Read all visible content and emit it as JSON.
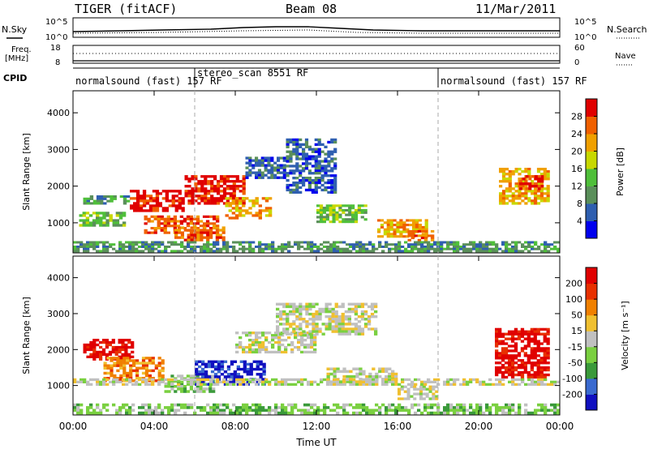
{
  "header": {
    "radar": "TIGER (fitACF)",
    "beam": "Beam 08",
    "date": "11/Mar/2011"
  },
  "nsky_panel": {
    "left_label": "N.Sky",
    "right_label": "N.Search",
    "left_ticks": [
      "10^5",
      "10^0"
    ],
    "right_ticks": [
      "10^5",
      "10^0"
    ]
  },
  "freq_panel": {
    "left_label_1": "Freq.",
    "left_label_2": "[MHz]",
    "right_label": "Nave",
    "left_ticks": [
      "18",
      "8"
    ],
    "right_ticks": [
      "60",
      "0"
    ]
  },
  "cpid": {
    "label": "CPID",
    "segments": [
      {
        "start_hour": 0,
        "end_hour": 6,
        "text": "normalsound (fast) 157 RF"
      },
      {
        "start_hour": 6,
        "end_hour": 18,
        "text": "stereo_scan 8551 RF"
      },
      {
        "start_hour": 18,
        "end_hour": 24,
        "text": "normalsound (fast) 157 RF"
      }
    ]
  },
  "power_panel": {
    "ylabel": "Slant Range [km]",
    "yticks": [
      "1000",
      "2000",
      "3000",
      "4000"
    ],
    "colorbar_label": "Power [dB]",
    "colorbar_ticks": [
      "4",
      "8",
      "12",
      "16",
      "20",
      "24",
      "28"
    ],
    "colorbar_colors": [
      "#0000ee",
      "#2f5fb0",
      "#5a8f5a",
      "#4fbf3a",
      "#c8d800",
      "#f0a000",
      "#f06000",
      "#e00000"
    ]
  },
  "velocity_panel": {
    "ylabel": "Slant Range [km]",
    "yticks": [
      "1000",
      "2000",
      "3000",
      "4000"
    ],
    "colorbar_label": "Velocity [m s⁻¹]",
    "colorbar_ticks": [
      "200",
      "100",
      "50",
      "15",
      "-15",
      "-50",
      "-100",
      "-200"
    ],
    "colorbar_colors": [
      "#1010c0",
      "#3a6ad0",
      "#3a9a3a",
      "#7ad040",
      "#c0c0c0",
      "#f0c030",
      "#f08000",
      "#e83000",
      "#e00000"
    ]
  },
  "xaxis": {
    "label": "Time UT",
    "ticks": [
      "00:00",
      "04:00",
      "08:00",
      "12:00",
      "16:00",
      "20:00",
      "00:00"
    ]
  },
  "chart_data": {
    "type": "heatmap",
    "title": "TIGER (fitACF)",
    "xlabel": "Time UT",
    "ylabel": "Slant Range [km]",
    "xlim": [
      0,
      24
    ],
    "ylim": [
      180,
      4600
    ],
    "power_blobs": [
      {
        "t0": 0.3,
        "t1": 2.6,
        "r0": 900,
        "r1": 1300,
        "level": 3
      },
      {
        "t0": 0.5,
        "t1": 2.8,
        "r0": 1500,
        "r1": 1750,
        "level": 2
      },
      {
        "t0": 2.8,
        "t1": 5.5,
        "r0": 1300,
        "r1": 1900,
        "level": 7
      },
      {
        "t0": 3.5,
        "t1": 7.2,
        "r0": 700,
        "r1": 1200,
        "level": 6
      },
      {
        "t0": 5.0,
        "t1": 7.5,
        "r0": 500,
        "r1": 900,
        "level": 6
      },
      {
        "t0": 5.5,
        "t1": 8.5,
        "r0": 1500,
        "r1": 2300,
        "level": 7
      },
      {
        "t0": 7.5,
        "t1": 9.8,
        "r0": 1100,
        "r1": 1700,
        "level": 5
      },
      {
        "t0": 8.5,
        "t1": 10.5,
        "r0": 2200,
        "r1": 2800,
        "level": 1
      },
      {
        "t0": 10.5,
        "t1": 13.0,
        "r0": 1800,
        "r1": 3300,
        "level": 1
      },
      {
        "t0": 12.0,
        "t1": 14.5,
        "r0": 1000,
        "r1": 1500,
        "level": 3
      },
      {
        "t0": 15.0,
        "t1": 17.5,
        "r0": 600,
        "r1": 1100,
        "level": 5
      },
      {
        "t0": 16.5,
        "t1": 17.8,
        "r0": 500,
        "r1": 800,
        "level": 6
      },
      {
        "t0": 21.0,
        "t1": 23.5,
        "r0": 1500,
        "r1": 2500,
        "level": 5
      },
      {
        "t0": 22.0,
        "t1": 23.2,
        "r0": 1900,
        "r1": 2300,
        "level": 7
      },
      {
        "t0": 0.0,
        "t1": 24.0,
        "r0": 200,
        "r1": 500,
        "level": 2
      }
    ],
    "velocity_blobs": [
      {
        "t0": 0.5,
        "t1": 3.0,
        "r0": 1700,
        "r1": 2300,
        "level": 8
      },
      {
        "t0": 1.5,
        "t1": 4.5,
        "r0": 1100,
        "r1": 1800,
        "level": 6
      },
      {
        "t0": 4.5,
        "t1": 7.0,
        "r0": 800,
        "r1": 1300,
        "level": 3
      },
      {
        "t0": 6.0,
        "t1": 9.5,
        "r0": 1000,
        "r1": 1700,
        "level": 0
      },
      {
        "t0": 8.0,
        "t1": 12.0,
        "r0": 1900,
        "r1": 2500,
        "level": 4
      },
      {
        "t0": 10.0,
        "t1": 15.0,
        "r0": 2400,
        "r1": 3300,
        "level": 4
      },
      {
        "t0": 12.5,
        "t1": 16.0,
        "r0": 1000,
        "r1": 1500,
        "level": 4
      },
      {
        "t0": 16.0,
        "t1": 18.0,
        "r0": 600,
        "r1": 1000,
        "level": 4
      },
      {
        "t0": 20.8,
        "t1": 23.5,
        "r0": 1200,
        "r1": 2600,
        "level": 8
      },
      {
        "t0": 0.0,
        "t1": 24.0,
        "r0": 200,
        "r1": 500,
        "level": 3
      },
      {
        "t0": 0.0,
        "t1": 24.0,
        "r0": 1000,
        "r1": 1200,
        "level": 4
      }
    ]
  }
}
